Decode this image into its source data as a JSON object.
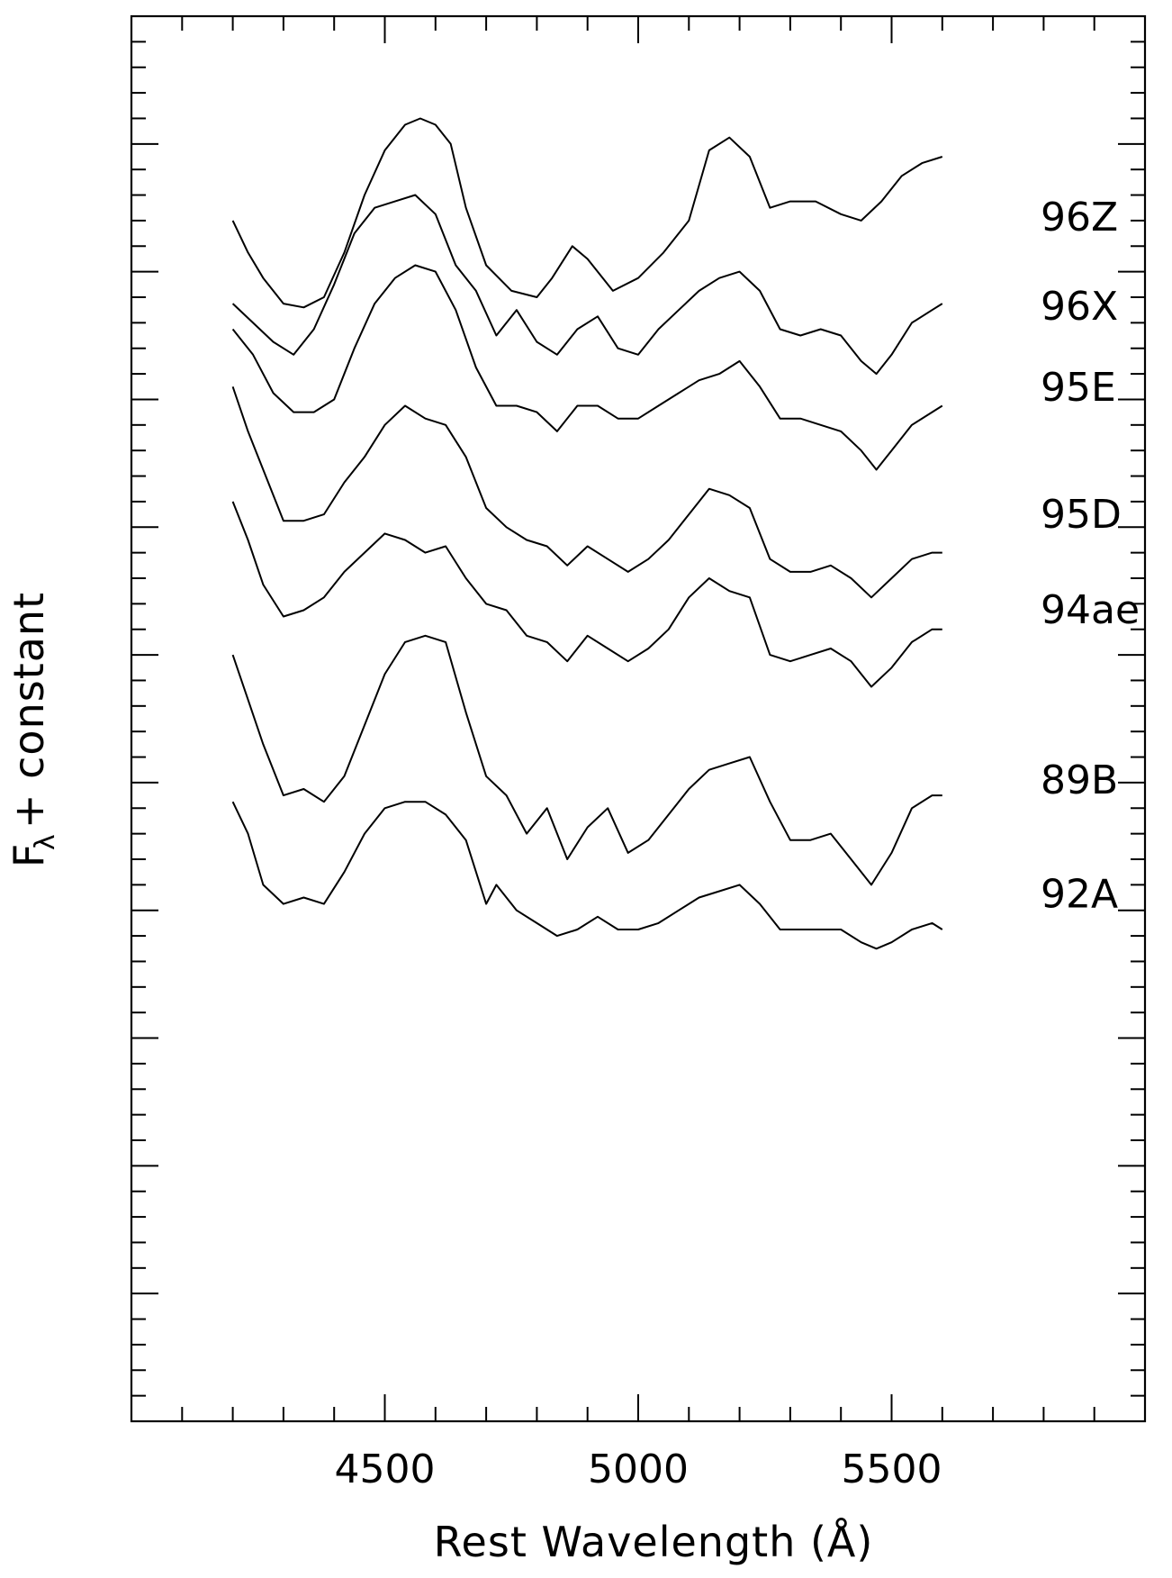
{
  "chart_data": {
    "type": "line",
    "xlabel": "Rest Wavelength (Å)",
    "ylabel": "F + constant",
    "ylabel_subscript": "λ",
    "xlim": [
      4000,
      6000
    ],
    "ylim": [
      0,
      11
    ],
    "x_ticks": [
      4500,
      5000,
      5500
    ],
    "x_tick_labels": [
      "4500",
      "5000",
      "5500"
    ],
    "y_label_visible": false,
    "grid": false,
    "legend": "none",
    "line_color": "#000000",
    "series": [
      {
        "name": "96Z",
        "points": [
          [
            4200,
            9.4
          ],
          [
            4230,
            9.15
          ],
          [
            4260,
            8.95
          ],
          [
            4300,
            8.75
          ],
          [
            4340,
            8.72
          ],
          [
            4380,
            8.8
          ],
          [
            4420,
            9.15
          ],
          [
            4460,
            9.6
          ],
          [
            4500,
            9.95
          ],
          [
            4540,
            10.15
          ],
          [
            4570,
            10.2
          ],
          [
            4600,
            10.15
          ],
          [
            4630,
            10.0
          ],
          [
            4660,
            9.5
          ],
          [
            4700,
            9.05
          ],
          [
            4750,
            8.85
          ],
          [
            4800,
            8.8
          ],
          [
            4830,
            8.95
          ],
          [
            4870,
            9.2
          ],
          [
            4900,
            9.1
          ],
          [
            4950,
            8.85
          ],
          [
            5000,
            8.95
          ],
          [
            5050,
            9.15
          ],
          [
            5100,
            9.4
          ],
          [
            5140,
            9.95
          ],
          [
            5180,
            10.05
          ],
          [
            5220,
            9.9
          ],
          [
            5260,
            9.5
          ],
          [
            5300,
            9.55
          ],
          [
            5350,
            9.55
          ],
          [
            5400,
            9.45
          ],
          [
            5440,
            9.4
          ],
          [
            5480,
            9.55
          ],
          [
            5520,
            9.75
          ],
          [
            5560,
            9.85
          ],
          [
            5600,
            9.9
          ]
        ]
      },
      {
        "name": "96X",
        "points": [
          [
            4200,
            8.75
          ],
          [
            4240,
            8.6
          ],
          [
            4280,
            8.45
          ],
          [
            4320,
            8.35
          ],
          [
            4360,
            8.55
          ],
          [
            4400,
            8.9
          ],
          [
            4440,
            9.3
          ],
          [
            4480,
            9.5
          ],
          [
            4520,
            9.55
          ],
          [
            4560,
            9.6
          ],
          [
            4600,
            9.45
          ],
          [
            4640,
            9.05
          ],
          [
            4680,
            8.85
          ],
          [
            4720,
            8.5
          ],
          [
            4760,
            8.7
          ],
          [
            4800,
            8.45
          ],
          [
            4840,
            8.35
          ],
          [
            4880,
            8.55
          ],
          [
            4920,
            8.65
          ],
          [
            4960,
            8.4
          ],
          [
            5000,
            8.35
          ],
          [
            5040,
            8.55
          ],
          [
            5080,
            8.7
          ],
          [
            5120,
            8.85
          ],
          [
            5160,
            8.95
          ],
          [
            5200,
            9.0
          ],
          [
            5240,
            8.85
          ],
          [
            5280,
            8.55
          ],
          [
            5320,
            8.5
          ],
          [
            5360,
            8.55
          ],
          [
            5400,
            8.5
          ],
          [
            5440,
            8.3
          ],
          [
            5470,
            8.2
          ],
          [
            5500,
            8.35
          ],
          [
            5540,
            8.6
          ],
          [
            5580,
            8.7
          ],
          [
            5600,
            8.75
          ]
        ]
      },
      {
        "name": "95E",
        "points": [
          [
            4200,
            8.55
          ],
          [
            4240,
            8.35
          ],
          [
            4280,
            8.05
          ],
          [
            4320,
            7.9
          ],
          [
            4360,
            7.9
          ],
          [
            4400,
            8.0
          ],
          [
            4440,
            8.4
          ],
          [
            4480,
            8.75
          ],
          [
            4520,
            8.95
          ],
          [
            4560,
            9.05
          ],
          [
            4600,
            9.0
          ],
          [
            4640,
            8.7
          ],
          [
            4680,
            8.25
          ],
          [
            4720,
            7.95
          ],
          [
            4760,
            7.95
          ],
          [
            4800,
            7.9
          ],
          [
            4840,
            7.75
          ],
          [
            4880,
            7.95
          ],
          [
            4920,
            7.95
          ],
          [
            4960,
            7.85
          ],
          [
            5000,
            7.85
          ],
          [
            5040,
            7.95
          ],
          [
            5080,
            8.05
          ],
          [
            5120,
            8.15
          ],
          [
            5160,
            8.2
          ],
          [
            5200,
            8.3
          ],
          [
            5240,
            8.1
          ],
          [
            5280,
            7.85
          ],
          [
            5320,
            7.85
          ],
          [
            5360,
            7.8
          ],
          [
            5400,
            7.75
          ],
          [
            5440,
            7.6
          ],
          [
            5470,
            7.45
          ],
          [
            5500,
            7.6
          ],
          [
            5540,
            7.8
          ],
          [
            5580,
            7.9
          ],
          [
            5600,
            7.95
          ]
        ]
      },
      {
        "name": "95D",
        "points": [
          [
            4200,
            8.1
          ],
          [
            4230,
            7.75
          ],
          [
            4260,
            7.45
          ],
          [
            4300,
            7.05
          ],
          [
            4340,
            7.05
          ],
          [
            4380,
            7.1
          ],
          [
            4420,
            7.35
          ],
          [
            4460,
            7.55
          ],
          [
            4500,
            7.8
          ],
          [
            4540,
            7.95
          ],
          [
            4580,
            7.85
          ],
          [
            4620,
            7.8
          ],
          [
            4660,
            7.55
          ],
          [
            4700,
            7.15
          ],
          [
            4740,
            7.0
          ],
          [
            4780,
            6.9
          ],
          [
            4820,
            6.85
          ],
          [
            4860,
            6.7
          ],
          [
            4900,
            6.85
          ],
          [
            4940,
            6.75
          ],
          [
            4980,
            6.65
          ],
          [
            5020,
            6.75
          ],
          [
            5060,
            6.9
          ],
          [
            5100,
            7.1
          ],
          [
            5140,
            7.3
          ],
          [
            5180,
            7.25
          ],
          [
            5220,
            7.15
          ],
          [
            5260,
            6.75
          ],
          [
            5300,
            6.65
          ],
          [
            5340,
            6.65
          ],
          [
            5380,
            6.7
          ],
          [
            5420,
            6.6
          ],
          [
            5460,
            6.45
          ],
          [
            5500,
            6.6
          ],
          [
            5540,
            6.75
          ],
          [
            5580,
            6.8
          ],
          [
            5600,
            6.8
          ]
        ]
      },
      {
        "name": "94ae",
        "points": [
          [
            4200,
            7.2
          ],
          [
            4230,
            6.9
          ],
          [
            4260,
            6.55
          ],
          [
            4300,
            6.3
          ],
          [
            4340,
            6.35
          ],
          [
            4380,
            6.45
          ],
          [
            4420,
            6.65
          ],
          [
            4460,
            6.8
          ],
          [
            4500,
            6.95
          ],
          [
            4540,
            6.9
          ],
          [
            4580,
            6.8
          ],
          [
            4620,
            6.85
          ],
          [
            4660,
            6.6
          ],
          [
            4700,
            6.4
          ],
          [
            4740,
            6.35
          ],
          [
            4780,
            6.15
          ],
          [
            4820,
            6.1
          ],
          [
            4860,
            5.95
          ],
          [
            4900,
            6.15
          ],
          [
            4940,
            6.05
          ],
          [
            4980,
            5.95
          ],
          [
            5020,
            6.05
          ],
          [
            5060,
            6.2
          ],
          [
            5100,
            6.45
          ],
          [
            5140,
            6.6
          ],
          [
            5180,
            6.5
          ],
          [
            5220,
            6.45
          ],
          [
            5260,
            6.0
          ],
          [
            5300,
            5.95
          ],
          [
            5340,
            6.0
          ],
          [
            5380,
            6.05
          ],
          [
            5420,
            5.95
          ],
          [
            5460,
            5.75
          ],
          [
            5500,
            5.9
          ],
          [
            5540,
            6.1
          ],
          [
            5580,
            6.2
          ],
          [
            5600,
            6.2
          ]
        ]
      },
      {
        "name": "89B",
        "points": [
          [
            4200,
            6.0
          ],
          [
            4230,
            5.65
          ],
          [
            4260,
            5.3
          ],
          [
            4300,
            4.9
          ],
          [
            4340,
            4.95
          ],
          [
            4380,
            4.85
          ],
          [
            4420,
            5.05
          ],
          [
            4460,
            5.45
          ],
          [
            4500,
            5.85
          ],
          [
            4540,
            6.1
          ],
          [
            4580,
            6.15
          ],
          [
            4620,
            6.1
          ],
          [
            4660,
            5.55
          ],
          [
            4700,
            5.05
          ],
          [
            4740,
            4.9
          ],
          [
            4780,
            4.6
          ],
          [
            4820,
            4.8
          ],
          [
            4860,
            4.4
          ],
          [
            4900,
            4.65
          ],
          [
            4940,
            4.8
          ],
          [
            4980,
            4.45
          ],
          [
            5020,
            4.55
          ],
          [
            5060,
            4.75
          ],
          [
            5100,
            4.95
          ],
          [
            5140,
            5.1
          ],
          [
            5180,
            5.15
          ],
          [
            5220,
            5.2
          ],
          [
            5260,
            4.85
          ],
          [
            5300,
            4.55
          ],
          [
            5340,
            4.55
          ],
          [
            5380,
            4.6
          ],
          [
            5420,
            4.4
          ],
          [
            5460,
            4.2
          ],
          [
            5500,
            4.45
          ],
          [
            5540,
            4.8
          ],
          [
            5580,
            4.9
          ],
          [
            5600,
            4.9
          ]
        ]
      },
      {
        "name": "92A",
        "points": [
          [
            4200,
            4.85
          ],
          [
            4230,
            4.6
          ],
          [
            4260,
            4.2
          ],
          [
            4300,
            4.05
          ],
          [
            4340,
            4.1
          ],
          [
            4380,
            4.05
          ],
          [
            4420,
            4.3
          ],
          [
            4460,
            4.6
          ],
          [
            4500,
            4.8
          ],
          [
            4540,
            4.85
          ],
          [
            4580,
            4.85
          ],
          [
            4620,
            4.75
          ],
          [
            4660,
            4.55
          ],
          [
            4700,
            4.05
          ],
          [
            4720,
            4.2
          ],
          [
            4760,
            4.0
          ],
          [
            4800,
            3.9
          ],
          [
            4840,
            3.8
          ],
          [
            4880,
            3.85
          ],
          [
            4920,
            3.95
          ],
          [
            4960,
            3.85
          ],
          [
            5000,
            3.85
          ],
          [
            5040,
            3.9
          ],
          [
            5080,
            4.0
          ],
          [
            5120,
            4.1
          ],
          [
            5160,
            4.15
          ],
          [
            5200,
            4.2
          ],
          [
            5240,
            4.05
          ],
          [
            5280,
            3.85
          ],
          [
            5320,
            3.85
          ],
          [
            5360,
            3.85
          ],
          [
            5400,
            3.85
          ],
          [
            5440,
            3.75
          ],
          [
            5470,
            3.7
          ],
          [
            5500,
            3.75
          ],
          [
            5540,
            3.85
          ],
          [
            5580,
            3.9
          ],
          [
            5600,
            3.85
          ]
        ]
      }
    ]
  }
}
